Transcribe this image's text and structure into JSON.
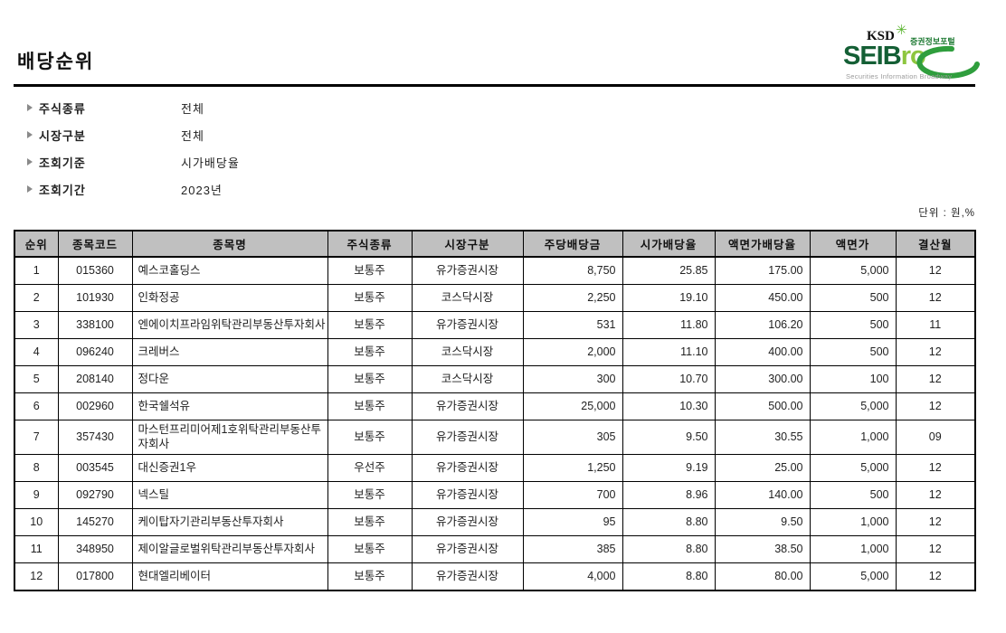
{
  "page": {
    "title": "배당순위",
    "unit_label": "단위 : 원,%"
  },
  "logo": {
    "ksd": "KSD",
    "star_icon": "✳",
    "portal": "증권정보포털",
    "brand_dark": "SEIB",
    "brand_light": "ro",
    "tagline": "Securities Information Broadway",
    "colors": {
      "dark_green": "#145f35",
      "light_green": "#8dc63f",
      "swoosh_green": "#2f9e3d"
    }
  },
  "filters": [
    {
      "label": "주식종류",
      "value": "전체"
    },
    {
      "label": "시장구분",
      "value": "전체"
    },
    {
      "label": "조회기준",
      "value": "시가배당율"
    },
    {
      "label": "조회기간",
      "value": "2023년"
    }
  ],
  "table": {
    "columns": [
      "순위",
      "종목코드",
      "종목명",
      "주식종류",
      "시장구분",
      "주당배당금",
      "시가배당율",
      "액면가배당율",
      "액면가",
      "결산월"
    ],
    "rows": [
      [
        "1",
        "015360",
        "예스코홀딩스",
        "보통주",
        "유가증권시장",
        "8,750",
        "25.85",
        "175.00",
        "5,000",
        "12"
      ],
      [
        "2",
        "101930",
        "인화정공",
        "보통주",
        "코스닥시장",
        "2,250",
        "19.10",
        "450.00",
        "500",
        "12"
      ],
      [
        "3",
        "338100",
        "엔에이치프라임위탁관리부동산투자회사",
        "보통주",
        "유가증권시장",
        "531",
        "11.80",
        "106.20",
        "500",
        "11"
      ],
      [
        "4",
        "096240",
        "크레버스",
        "보통주",
        "코스닥시장",
        "2,000",
        "11.10",
        "400.00",
        "500",
        "12"
      ],
      [
        "5",
        "208140",
        "정다운",
        "보통주",
        "코스닥시장",
        "300",
        "10.70",
        "300.00",
        "100",
        "12"
      ],
      [
        "6",
        "002960",
        "한국쉘석유",
        "보통주",
        "유가증권시장",
        "25,000",
        "10.30",
        "500.00",
        "5,000",
        "12"
      ],
      [
        "7",
        "357430",
        "마스턴프리미어제1호위탁관리부동산투자회사",
        "보통주",
        "유가증권시장",
        "305",
        "9.50",
        "30.55",
        "1,000",
        "09"
      ],
      [
        "8",
        "003545",
        "대신증권1우",
        "우선주",
        "유가증권시장",
        "1,250",
        "9.19",
        "25.00",
        "5,000",
        "12"
      ],
      [
        "9",
        "092790",
        "넥스틸",
        "보통주",
        "유가증권시장",
        "700",
        "8.96",
        "140.00",
        "500",
        "12"
      ],
      [
        "10",
        "145270",
        "케이탑자기관리부동산투자회사",
        "보통주",
        "유가증권시장",
        "95",
        "8.80",
        "9.50",
        "1,000",
        "12"
      ],
      [
        "11",
        "348950",
        "제이알글로벌위탁관리부동산투자회사",
        "보통주",
        "유가증권시장",
        "385",
        "8.80",
        "38.50",
        "1,000",
        "12"
      ],
      [
        "12",
        "017800",
        "현대엘리베이터",
        "보통주",
        "유가증권시장",
        "4,000",
        "8.80",
        "80.00",
        "5,000",
        "12"
      ]
    ]
  }
}
